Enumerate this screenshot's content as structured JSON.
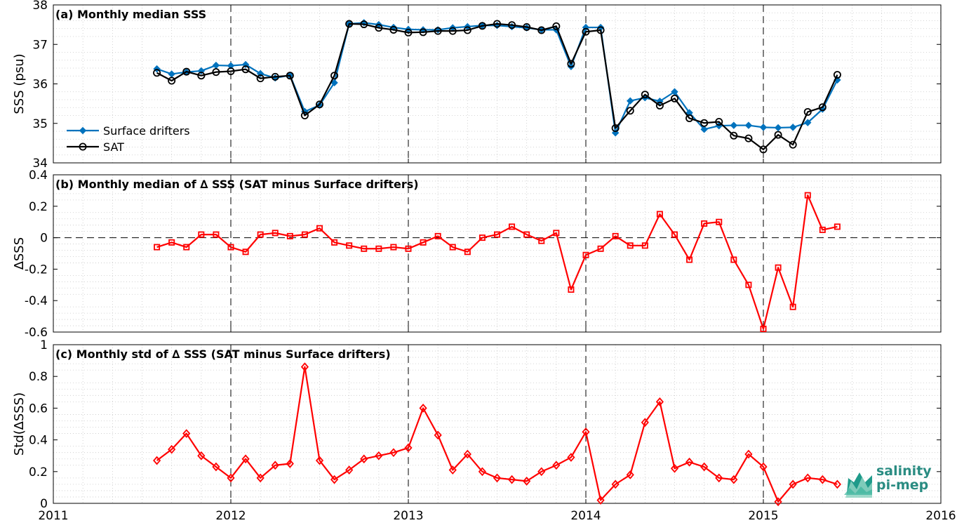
{
  "chart_data": [
    {
      "type": "line",
      "title": "(a) Monthly median SSS",
      "ylabel": "SSS (psu)",
      "ylim": [
        34,
        38
      ],
      "yticks": [
        "34",
        "35",
        "36",
        "37",
        "38"
      ],
      "xlim": [
        2011,
        2016
      ],
      "grid": "dotted minor grid, dashed vertical lines at each year",
      "legend": "left",
      "series": [
        {
          "name": "Surface drifters",
          "color": "#0072bd",
          "marker": "filled diamond",
          "values": [
            36.38,
            36.25,
            36.3,
            36.33,
            36.47,
            36.46,
            36.49,
            36.26,
            36.15,
            36.22,
            35.3,
            35.46,
            36.03,
            37.52,
            37.55,
            37.5,
            37.43,
            37.38,
            37.37,
            37.37,
            37.42,
            37.45,
            37.48,
            37.48,
            37.45,
            37.42,
            37.37,
            37.37,
            36.44,
            37.43,
            37.43,
            34.76,
            35.57,
            35.65,
            35.56,
            35.8,
            35.27,
            34.85,
            34.94,
            34.95,
            34.95,
            34.9,
            34.89,
            34.9,
            35.02,
            35.36,
            36.1
          ]
        },
        {
          "name": "SAT",
          "color": "#000000",
          "marker": "open circle",
          "values": [
            36.28,
            36.08,
            36.31,
            36.21,
            36.3,
            36.32,
            36.37,
            36.14,
            36.18,
            36.21,
            35.2,
            35.48,
            36.21,
            37.52,
            37.51,
            37.42,
            37.37,
            37.3,
            37.31,
            37.34,
            37.34,
            37.36,
            37.47,
            37.52,
            37.49,
            37.44,
            37.36,
            37.46,
            36.51,
            37.32,
            37.36,
            34.88,
            35.32,
            35.73,
            35.45,
            35.63,
            35.13,
            35.01,
            35.04,
            34.69,
            34.62,
            34.34,
            34.71,
            34.46,
            35.29,
            35.41,
            36.23
          ]
        }
      ]
    },
    {
      "type": "line",
      "title": "(b) Monthly median of ∆ SSS (SAT minus Surface drifters)",
      "ylabel": "∆SSS",
      "ylim": [
        -0.6,
        0.4
      ],
      "yticks": [
        "-0.6",
        "-0.4",
        "-0.2",
        "0",
        "0.2",
        "0.4"
      ],
      "xlim": [
        2011,
        2016
      ],
      "zero_line": "dashed",
      "series": [
        {
          "name": "",
          "color": "#ff0000",
          "marker": "open square",
          "values": [
            -0.06,
            -0.03,
            -0.06,
            0.02,
            0.02,
            -0.06,
            -0.09,
            0.02,
            0.03,
            0.01,
            0.02,
            0.06,
            -0.03,
            -0.05,
            -0.07,
            -0.07,
            -0.06,
            -0.07,
            -0.03,
            0.01,
            -0.06,
            -0.09,
            0.0,
            0.02,
            0.07,
            0.02,
            -0.02,
            0.03,
            -0.33,
            -0.11,
            -0.07,
            0.01,
            -0.05,
            -0.05,
            0.15,
            0.02,
            -0.14,
            0.09,
            0.1,
            -0.14,
            -0.3,
            -0.58,
            -0.19,
            -0.44,
            0.27,
            0.05,
            0.07
          ]
        }
      ]
    },
    {
      "type": "line",
      "title": "(c) Monthly std of ∆ SSS (SAT minus Surface drifters)",
      "ylabel": "Std(∆SSS)",
      "ylim": [
        0,
        1
      ],
      "yticks": [
        "0",
        "0.2",
        "0.4",
        "0.6",
        "0.8",
        "1"
      ],
      "xlim": [
        2011,
        2016
      ],
      "series": [
        {
          "name": "",
          "color": "#ff0000",
          "marker": "open diamond",
          "values": [
            0.27,
            0.34,
            0.44,
            0.3,
            0.23,
            0.16,
            0.28,
            0.16,
            0.24,
            0.25,
            0.86,
            0.27,
            0.15,
            0.21,
            0.28,
            0.3,
            0.32,
            0.35,
            0.6,
            0.43,
            0.21,
            0.31,
            0.2,
            0.16,
            0.15,
            0.14,
            0.2,
            0.24,
            0.29,
            0.45,
            0.02,
            0.12,
            0.18,
            0.51,
            0.64,
            0.22,
            0.26,
            0.23,
            0.16,
            0.15,
            0.31,
            0.23,
            0.01,
            0.12,
            0.16,
            0.15,
            0.12
          ]
        }
      ]
    }
  ],
  "x_axis": {
    "start": [
      2011,
      8
    ],
    "ticks": [
      "2011",
      "2012",
      "2013",
      "2014",
      "2015",
      "2016"
    ]
  },
  "logo": {
    "line1": "salinity",
    "line2": "pi-mep"
  }
}
